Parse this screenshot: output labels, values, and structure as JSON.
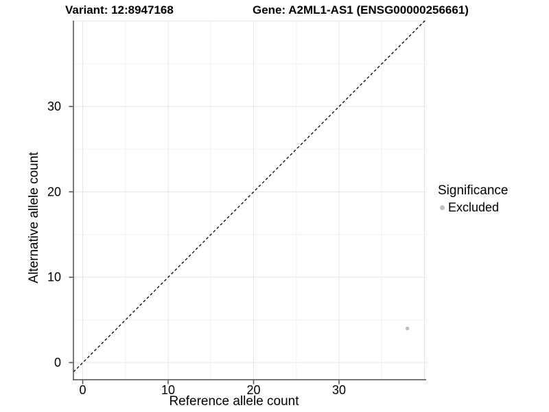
{
  "figure": {
    "title_variant": "Variant: 12:8947168",
    "title_gene": "Gene: A2ML1-AS1 (ENSG00000256661)"
  },
  "axes": {
    "x_label": "Reference allele count",
    "y_label": "Alternative allele count"
  },
  "legend": {
    "title": "Significance",
    "items": [
      {
        "label": "Excluded",
        "color": "#bebebe"
      }
    ]
  },
  "colors": {
    "background": "#ffffff",
    "axis_line": "#4d4d4d",
    "tick_label": "#000000",
    "grid_major": "#e4e4e4",
    "grid_minor": "#f0f0f0",
    "point": "#bebebe",
    "reference_line": "#000000"
  },
  "chart_data": {
    "type": "scatter",
    "title": "Variant: 12:8947168 | Gene: A2ML1-AS1 (ENSG00000256661)",
    "xlabel": "Reference allele count",
    "ylabel": "Alternative allele count",
    "x_ticks": [
      0,
      10,
      20,
      30
    ],
    "y_ticks": [
      0,
      10,
      20,
      30
    ],
    "xlim": [
      -1.1,
      40.2
    ],
    "ylim": [
      -2.0,
      40.2
    ],
    "grid": true,
    "grid_interval": 5,
    "grid_max": 40,
    "legend_position": "right",
    "series": [
      {
        "name": "Excluded",
        "color": "#bebebe",
        "points": [
          {
            "x": 38,
            "y": 4
          }
        ]
      }
    ],
    "reference_line": {
      "kind": "identity y=x",
      "style": "dashed",
      "color": "#000000"
    }
  }
}
